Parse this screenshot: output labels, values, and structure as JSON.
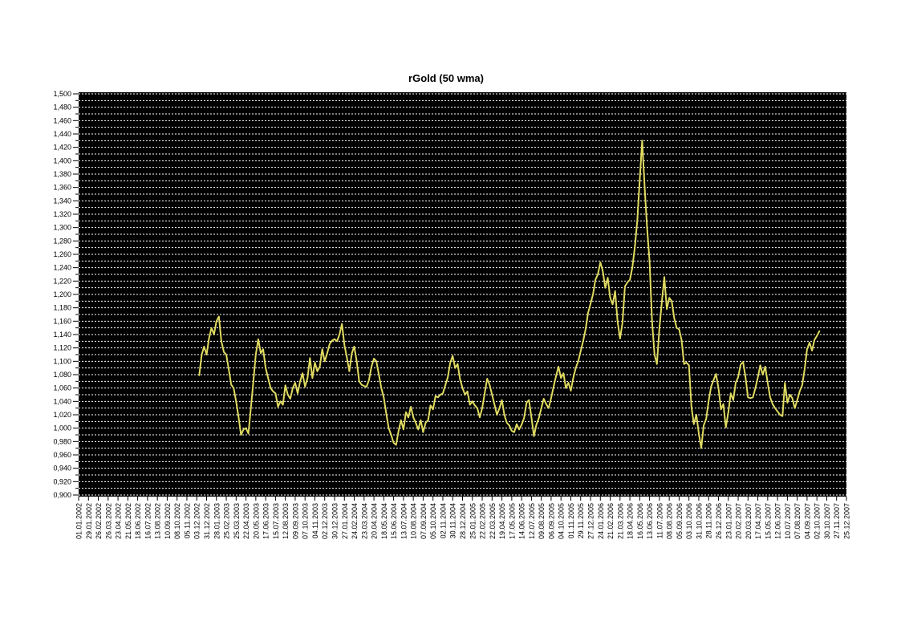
{
  "title": "rGold (50 wma)",
  "chart_data": {
    "type": "line",
    "title": "rGold (50 wma)",
    "legend": "none",
    "grid": "horizontal-dotted",
    "plot_bg_color": "#000000",
    "gridline_color": "#ffffff",
    "line_color": "#e0db60",
    "axis_text_color": "#000000",
    "ylim": [
      0.9,
      1.5
    ],
    "y_major_step": 0.02,
    "y_grid_step": 0.01,
    "y_tick_labels": [
      "1,500",
      "1,480",
      "1,460",
      "1,440",
      "1,420",
      "1,400",
      "1,380",
      "1,360",
      "1,340",
      "1,320",
      "1,300",
      "1,280",
      "1,260",
      "1,240",
      "1,220",
      "1,200",
      "1,180",
      "1,160",
      "1,140",
      "1,120",
      "1,100",
      "1,080",
      "1,060",
      "1,040",
      "1,020",
      "1,000",
      "0,980",
      "0,960",
      "0,940",
      "0,920",
      "0,900"
    ],
    "x_axis_start": "01.01.2002",
    "x_axis_end": "25.12.2007",
    "x_label_interval_days": 28,
    "x_tick_labels": [
      "01.01.2002",
      "29.01.2002",
      "26.02.2002",
      "26.03.2002",
      "23.04.2002",
      "21.05.2002",
      "18.06.2002",
      "16.07.2002",
      "13.08.2002",
      "10.09.2002",
      "08.10.2002",
      "05.11.2002",
      "03.12.2002",
      "31.12.2002",
      "28.01.2003",
      "25.02.2003",
      "25.03.2003",
      "22.04.2003",
      "20.05.2003",
      "17.06.2003",
      "15.07.2003",
      "12.08.2003",
      "09.09.2003",
      "07.10.2003",
      "04.11.2003",
      "02.12.2003",
      "30.12.2003",
      "27.01.2004",
      "24.02.2004",
      "23.03.2004",
      "20.04.2004",
      "18.05.2004",
      "15.06.2004",
      "13.07.2004",
      "10.08.2004",
      "07.09.2004",
      "05.10.2004",
      "02.11.2004",
      "30.11.2004",
      "28.12.2004",
      "25.01.2005",
      "22.02.2005",
      "22.03.2005",
      "19.04.2005",
      "17.05.2005",
      "14.06.2005",
      "12.07.2005",
      "09.08.2005",
      "06.09.2005",
      "04.10.2005",
      "01.11.2005",
      "29.11.2005",
      "27.12.2005",
      "24.01.2006",
      "21.02.2006",
      "21.03.2006",
      "18.04.2006",
      "16.05.2006",
      "13.06.2006",
      "11.07.2006",
      "08.08.2006",
      "05.09.2006",
      "03.10.2006",
      "31.10.2006",
      "28.11.2006",
      "26.12.2006",
      "23.01.2007",
      "20.02.2007",
      "20.03.2007",
      "17.04.2007",
      "15.05.2007",
      "12.06.2007",
      "10.07.2007",
      "07.08.2007",
      "04.09.2007",
      "02.10.2007",
      "30.10.2007",
      "27.11.2007",
      "25.12.2007"
    ],
    "series": {
      "name": "rGold (50 wma)",
      "start_date": "10.12.2002",
      "interval_days": 7,
      "values": [
        1.079,
        1.11,
        1.122,
        1.11,
        1.135,
        1.15,
        1.14,
        1.16,
        1.167,
        1.13,
        1.114,
        1.11,
        1.088,
        1.065,
        1.06,
        1.04,
        1.016,
        0.99,
        0.998,
        1.0,
        0.992,
        1.03,
        1.07,
        1.11,
        1.133,
        1.112,
        1.118,
        1.09,
        1.075,
        1.06,
        1.055,
        1.052,
        1.032,
        1.04,
        1.035,
        1.064,
        1.05,
        1.044,
        1.06,
        1.068,
        1.052,
        1.07,
        1.082,
        1.062,
        1.075,
        1.105,
        1.075,
        1.098,
        1.085,
        1.092,
        1.118,
        1.1,
        1.112,
        1.126,
        1.131,
        1.133,
        1.13,
        1.14,
        1.156,
        1.124,
        1.106,
        1.085,
        1.112,
        1.122,
        1.1,
        1.07,
        1.065,
        1.063,
        1.062,
        1.072,
        1.092,
        1.104,
        1.1,
        1.08,
        1.06,
        1.046,
        1.022,
        1.0,
        0.99,
        0.978,
        0.975,
        0.996,
        1.012,
        0.998,
        1.024,
        1.016,
        1.032,
        1.016,
        1.008,
        0.998,
        1.012,
        0.994,
        1.008,
        1.012,
        1.034,
        1.028,
        1.048,
        1.046,
        1.05,
        1.052,
        1.064,
        1.076,
        1.098,
        1.108,
        1.09,
        1.096,
        1.073,
        1.06,
        1.05,
        1.055,
        1.035,
        1.04,
        1.034,
        1.03,
        1.016,
        1.03,
        1.052,
        1.074,
        1.065,
        1.05,
        1.035,
        1.02,
        1.03,
        1.042,
        1.02,
        1.008,
        1.004,
        0.996,
        0.994,
        1.006,
        0.998,
        1.005,
        1.015,
        1.038,
        1.042,
        1.016,
        0.988,
        1.005,
        1.015,
        1.03,
        1.044,
        1.036,
        1.03,
        1.045,
        1.062,
        1.078,
        1.092,
        1.075,
        1.082,
        1.06,
        1.068,
        1.056,
        1.075,
        1.09,
        1.1,
        1.115,
        1.13,
        1.148,
        1.172,
        1.186,
        1.2,
        1.222,
        1.23,
        1.248,
        1.235,
        1.21,
        1.225,
        1.195,
        1.185,
        1.205,
        1.16,
        1.134,
        1.158,
        1.212,
        1.218,
        1.222,
        1.24,
        1.27,
        1.31,
        1.37,
        1.43,
        1.36,
        1.3,
        1.25,
        1.16,
        1.11,
        1.096,
        1.15,
        1.19,
        1.226,
        1.178,
        1.195,
        1.19,
        1.165,
        1.15,
        1.148,
        1.132,
        1.096,
        1.098,
        1.094,
        1.032,
        1.006,
        1.02,
        0.992,
        0.97,
        1.004,
        1.014,
        1.04,
        1.062,
        1.072,
        1.081,
        1.06,
        1.028,
        1.036,
        1.001,
        1.024,
        1.052,
        1.042,
        1.068,
        1.076,
        1.095,
        1.099,
        1.076,
        1.046,
        1.045,
        1.046,
        1.06,
        1.076,
        1.094,
        1.08,
        1.092,
        1.068,
        1.046,
        1.036,
        1.03,
        1.025,
        1.02,
        1.018,
        1.068,
        1.038,
        1.05,
        1.045,
        1.03,
        1.042,
        1.055,
        1.064,
        1.088,
        1.118,
        1.128,
        1.116,
        1.132,
        1.138,
        1.145
      ]
    }
  }
}
